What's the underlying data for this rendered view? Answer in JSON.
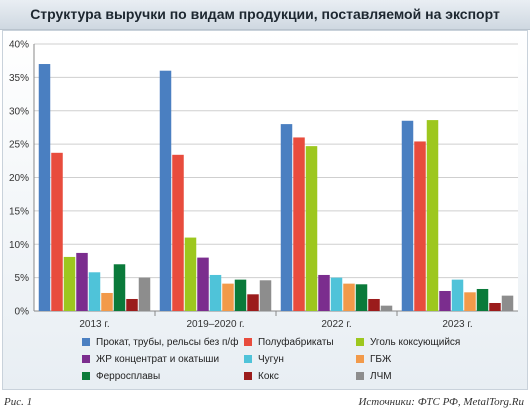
{
  "title": "Структура выручки по видам продукции, поставляемой на экспорт",
  "footer": {
    "figure": "Рис. 1",
    "source": "Источники: ФТС РФ, MetalTorg.Ru"
  },
  "chart_data": {
    "type": "bar",
    "categories": [
      "2013 г.",
      "2019–2020 г.",
      "2022 г.",
      "2023 г."
    ],
    "ylim": [
      0,
      40
    ],
    "yticks": [
      0,
      5,
      10,
      15,
      20,
      25,
      30,
      35,
      40
    ],
    "ytick_labels": [
      "0%",
      "5%",
      "10%",
      "15%",
      "20%",
      "25%",
      "30%",
      "35%",
      "40%"
    ],
    "grid": true,
    "legend_position": "bottom",
    "series": [
      {
        "name": "Прокат, трубы, рельсы без п/ф",
        "color": "#4a7fc1",
        "values": [
          37,
          36,
          28,
          28.5
        ]
      },
      {
        "name": "Полуфабрикаты",
        "color": "#e84c3d",
        "values": [
          23.7,
          23.4,
          26,
          25.4
        ]
      },
      {
        "name": "Уголь коксующийся",
        "color": "#9dc71e",
        "values": [
          8.1,
          11,
          24.7,
          28.6
        ]
      },
      {
        "name": "ЖР концентрат и окатыши",
        "color": "#7b2d8e",
        "values": [
          8.7,
          8,
          5.4,
          3
        ]
      },
      {
        "name": "Чугун",
        "color": "#4fc3d9",
        "values": [
          5.8,
          5.4,
          5,
          4.7
        ]
      },
      {
        "name": "ГБЖ",
        "color": "#f29a4a",
        "values": [
          2.7,
          4.1,
          4.1,
          2.8
        ]
      },
      {
        "name": "Ферросплавы",
        "color": "#0a7a3a",
        "values": [
          7,
          4.7,
          4,
          3.3
        ]
      },
      {
        "name": "Кокс",
        "color": "#9b1c1c",
        "values": [
          1.8,
          2.5,
          1.8,
          1.2
        ]
      },
      {
        "name": "ЛЧМ",
        "color": "#8d8d8d",
        "values": [
          5,
          4.6,
          0.8,
          2.3
        ]
      }
    ]
  }
}
